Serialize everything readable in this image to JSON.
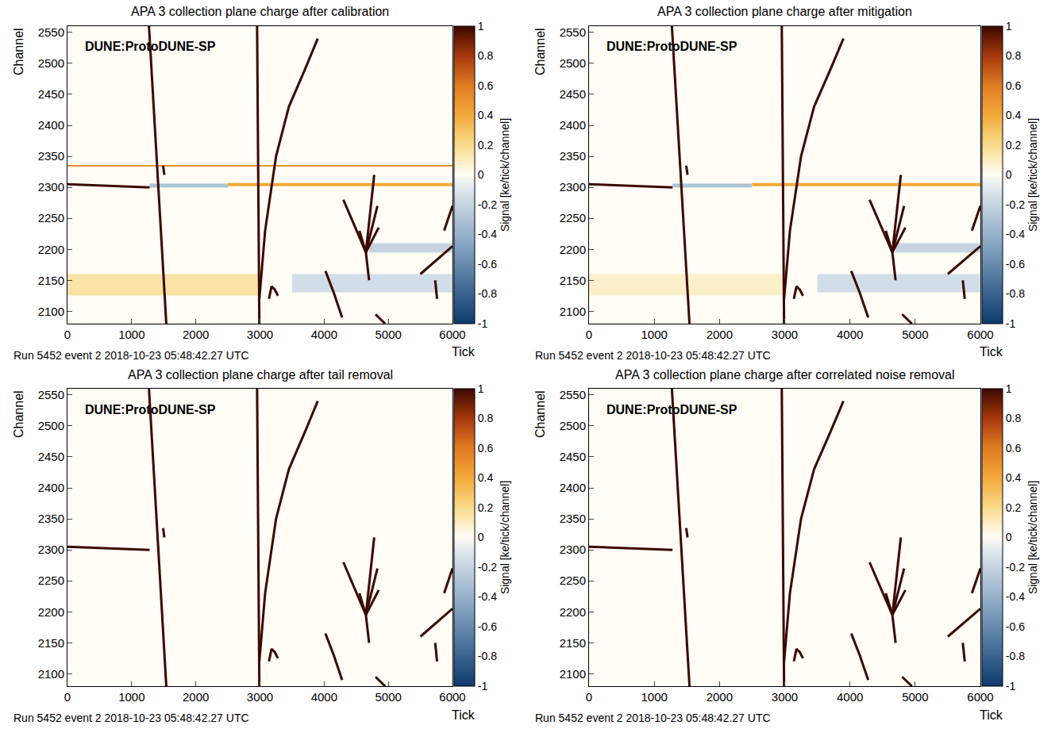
{
  "chart_data": [
    {
      "type": "heatmap",
      "title": "APA 3 collection plane charge after calibration",
      "label": "DUNE:ProtoDUNE-SP",
      "footer": "Run 5452 event 2 2018-10-23 05:48:42.27 UTC",
      "x_label": "Tick",
      "y_label": "Channel",
      "colorbar_label": "Signal [ke/tick/channel]",
      "xlim": [
        0,
        6000
      ],
      "ylim": [
        2080,
        2560
      ],
      "xticks": [
        0,
        1000,
        2000,
        3000,
        4000,
        5000,
        6000
      ],
      "yticks": [
        2100,
        2150,
        2200,
        2250,
        2300,
        2350,
        2400,
        2450,
        2500,
        2550
      ],
      "zlim": [
        -1,
        1
      ],
      "zticks": [
        -1,
        -0.8,
        -0.6,
        -0.4,
        -0.2,
        0,
        0.2,
        0.4,
        0.6,
        0.8,
        1
      ],
      "grid": false,
      "background": 0,
      "bands": [
        {
          "x": [
            0,
            3000
          ],
          "y": [
            2125,
            2160
          ],
          "value": 0.15
        },
        {
          "x": [
            3500,
            6000
          ],
          "y": [
            2130,
            2160
          ],
          "value": -0.15
        },
        {
          "x": [
            4700,
            6000
          ],
          "y": [
            2195,
            2210
          ],
          "value": -0.2
        },
        {
          "x": [
            1280,
            2500
          ],
          "y": [
            2300,
            2306
          ],
          "value": -0.3
        },
        {
          "x": [
            2500,
            6000
          ],
          "y": [
            2302,
            2307
          ],
          "value": 0.4
        },
        {
          "x": [
            0,
            6000
          ],
          "y": [
            2333,
            2336
          ],
          "value": 0.5
        }
      ],
      "tracks": [
        {
          "x": [
            1270,
            1400,
            1540
          ],
          "y": [
            2560,
            2330,
            2080
          ],
          "value": 1
        },
        {
          "x": [
            2955,
            2970,
            2985,
            2990
          ],
          "y": [
            2560,
            2330,
            2120,
            2080
          ],
          "value": 1
        },
        {
          "x": [
            2990,
            3080,
            3250,
            3450,
            3700,
            3900
          ],
          "y": [
            2120,
            2230,
            2350,
            2430,
            2490,
            2540
          ],
          "value": 1
        },
        {
          "x": [
            0,
            1280
          ],
          "y": [
            2305,
            2300
          ],
          "value": 1
        },
        {
          "x": [
            4300,
            4650
          ],
          "y": [
            2280,
            2195
          ],
          "value": 1
        },
        {
          "x": [
            4650,
            4780
          ],
          "y": [
            2195,
            2320
          ],
          "value": 1
        },
        {
          "x": [
            4650,
            4830
          ],
          "y": [
            2195,
            2270
          ],
          "value": 1
        },
        {
          "x": [
            4650,
            4850
          ],
          "y": [
            2195,
            2235
          ],
          "value": 1
        },
        {
          "x": [
            4550,
            4650,
            4700
          ],
          "y": [
            2230,
            2195,
            2150
          ],
          "value": 1
        },
        {
          "x": [
            4020,
            4150,
            4280
          ],
          "y": [
            2165,
            2130,
            2090
          ],
          "value": 1
        },
        {
          "x": [
            5500,
            6000
          ],
          "y": [
            2160,
            2205
          ],
          "value": 1
        },
        {
          "x": [
            5870,
            6000
          ],
          "y": [
            2230,
            2270
          ],
          "value": 1
        },
        {
          "x": [
            3140,
            3180,
            3230,
            3280
          ],
          "y": [
            2120,
            2140,
            2135,
            2125
          ],
          "value": 1
        },
        {
          "x": [
            1490,
            1510
          ],
          "y": [
            2335,
            2320
          ],
          "value": 1
        },
        {
          "x": [
            4800,
            4950
          ],
          "y": [
            2095,
            2080
          ],
          "value": 1
        },
        {
          "x": [
            5730,
            5760
          ],
          "y": [
            2150,
            2120
          ],
          "value": 1
        }
      ]
    },
    {
      "type": "heatmap",
      "title": "APA 3 collection plane charge after mitigation",
      "label": "DUNE:ProtoDUNE-SP",
      "footer": "Run 5452 event 2 2018-10-23 05:48:42.27 UTC",
      "x_label": "Tick",
      "y_label": "Channel",
      "colorbar_label": "Signal [ke/tick/channel]",
      "xlim": [
        0,
        6000
      ],
      "ylim": [
        2080,
        2560
      ],
      "xticks": [
        0,
        1000,
        2000,
        3000,
        4000,
        5000,
        6000
      ],
      "yticks": [
        2100,
        2150,
        2200,
        2250,
        2300,
        2350,
        2400,
        2450,
        2500,
        2550
      ],
      "zlim": [
        -1,
        1
      ],
      "zticks": [
        -1,
        -0.8,
        -0.6,
        -0.4,
        -0.2,
        0,
        0.2,
        0.4,
        0.6,
        0.8,
        1
      ],
      "grid": false,
      "background": 0,
      "bands": [
        {
          "x": [
            0,
            3000
          ],
          "y": [
            2125,
            2160
          ],
          "value": 0.08
        },
        {
          "x": [
            3500,
            6000
          ],
          "y": [
            2130,
            2160
          ],
          "value": -0.15
        },
        {
          "x": [
            4700,
            6000
          ],
          "y": [
            2195,
            2210
          ],
          "value": -0.2
        },
        {
          "x": [
            1280,
            2500
          ],
          "y": [
            2300,
            2306
          ],
          "value": -0.3
        },
        {
          "x": [
            2500,
            6000
          ],
          "y": [
            2302,
            2307
          ],
          "value": 0.4
        }
      ],
      "tracks": [
        {
          "x": [
            1270,
            1400,
            1540
          ],
          "y": [
            2560,
            2330,
            2080
          ],
          "value": 1
        },
        {
          "x": [
            2955,
            2970,
            2985,
            2990
          ],
          "y": [
            2560,
            2330,
            2120,
            2080
          ],
          "value": 1
        },
        {
          "x": [
            2990,
            3080,
            3250,
            3450,
            3700,
            3900
          ],
          "y": [
            2120,
            2230,
            2350,
            2430,
            2490,
            2540
          ],
          "value": 1
        },
        {
          "x": [
            0,
            1280
          ],
          "y": [
            2305,
            2300
          ],
          "value": 1
        },
        {
          "x": [
            4300,
            4650
          ],
          "y": [
            2280,
            2195
          ],
          "value": 1
        },
        {
          "x": [
            4650,
            4780
          ],
          "y": [
            2195,
            2320
          ],
          "value": 1
        },
        {
          "x": [
            4650,
            4830
          ],
          "y": [
            2195,
            2270
          ],
          "value": 1
        },
        {
          "x": [
            4650,
            4850
          ],
          "y": [
            2195,
            2235
          ],
          "value": 1
        },
        {
          "x": [
            4550,
            4650,
            4700
          ],
          "y": [
            2230,
            2195,
            2150
          ],
          "value": 1
        },
        {
          "x": [
            4020,
            4150,
            4280
          ],
          "y": [
            2165,
            2130,
            2090
          ],
          "value": 1
        },
        {
          "x": [
            5500,
            6000
          ],
          "y": [
            2160,
            2205
          ],
          "value": 1
        },
        {
          "x": [
            5870,
            6000
          ],
          "y": [
            2230,
            2270
          ],
          "value": 1
        },
        {
          "x": [
            3140,
            3180,
            3230,
            3280
          ],
          "y": [
            2120,
            2140,
            2135,
            2125
          ],
          "value": 1
        },
        {
          "x": [
            1490,
            1510
          ],
          "y": [
            2335,
            2320
          ],
          "value": 1
        },
        {
          "x": [
            4800,
            4950
          ],
          "y": [
            2095,
            2080
          ],
          "value": 1
        },
        {
          "x": [
            5730,
            5760
          ],
          "y": [
            2150,
            2120
          ],
          "value": 1
        }
      ]
    },
    {
      "type": "heatmap",
      "title": "APA 3 collection plane charge after tail removal",
      "label": "DUNE:ProtoDUNE-SP",
      "footer": "Run 5452 event 2 2018-10-23 05:48:42.27 UTC",
      "x_label": "Tick",
      "y_label": "Channel",
      "colorbar_label": "Signal [ke/tick/channel]",
      "xlim": [
        0,
        6000
      ],
      "ylim": [
        2080,
        2560
      ],
      "xticks": [
        0,
        1000,
        2000,
        3000,
        4000,
        5000,
        6000
      ],
      "yticks": [
        2100,
        2150,
        2200,
        2250,
        2300,
        2350,
        2400,
        2450,
        2500,
        2550
      ],
      "zlim": [
        -1,
        1
      ],
      "zticks": [
        -1,
        -0.8,
        -0.6,
        -0.4,
        -0.2,
        0,
        0.2,
        0.4,
        0.6,
        0.8,
        1
      ],
      "grid": false,
      "background": 0,
      "bands": [],
      "tracks": [
        {
          "x": [
            1270,
            1400,
            1540
          ],
          "y": [
            2560,
            2330,
            2080
          ],
          "value": 1
        },
        {
          "x": [
            2955,
            2970,
            2985,
            2990
          ],
          "y": [
            2560,
            2330,
            2120,
            2080
          ],
          "value": 1
        },
        {
          "x": [
            2990,
            3080,
            3250,
            3450,
            3700,
            3900
          ],
          "y": [
            2120,
            2230,
            2350,
            2430,
            2490,
            2540
          ],
          "value": 1
        },
        {
          "x": [
            0,
            1280
          ],
          "y": [
            2305,
            2300
          ],
          "value": 1
        },
        {
          "x": [
            4300,
            4650
          ],
          "y": [
            2280,
            2195
          ],
          "value": 1
        },
        {
          "x": [
            4650,
            4780
          ],
          "y": [
            2195,
            2320
          ],
          "value": 1
        },
        {
          "x": [
            4650,
            4830
          ],
          "y": [
            2195,
            2270
          ],
          "value": 1
        },
        {
          "x": [
            4650,
            4850
          ],
          "y": [
            2195,
            2235
          ],
          "value": 1
        },
        {
          "x": [
            4550,
            4650,
            4700
          ],
          "y": [
            2230,
            2195,
            2150
          ],
          "value": 1
        },
        {
          "x": [
            4020,
            4150,
            4280
          ],
          "y": [
            2165,
            2130,
            2090
          ],
          "value": 1
        },
        {
          "x": [
            5500,
            6000
          ],
          "y": [
            2160,
            2205
          ],
          "value": 1
        },
        {
          "x": [
            5870,
            6000
          ],
          "y": [
            2230,
            2270
          ],
          "value": 1
        },
        {
          "x": [
            3140,
            3180,
            3230,
            3280
          ],
          "y": [
            2120,
            2140,
            2135,
            2125
          ],
          "value": 1
        },
        {
          "x": [
            1490,
            1510
          ],
          "y": [
            2335,
            2320
          ],
          "value": 1
        },
        {
          "x": [
            4800,
            4950
          ],
          "y": [
            2095,
            2080
          ],
          "value": 1
        },
        {
          "x": [
            5730,
            5760
          ],
          "y": [
            2150,
            2120
          ],
          "value": 1
        }
      ]
    },
    {
      "type": "heatmap",
      "title": "APA 3 collection plane charge after correlated noise removal",
      "label": "DUNE:ProtoDUNE-SP",
      "footer": "Run 5452 event 2 2018-10-23 05:48:42.27 UTC",
      "x_label": "Tick",
      "y_label": "Channel",
      "colorbar_label": "Signal [ke/tick/channel]",
      "xlim": [
        0,
        6000
      ],
      "ylim": [
        2080,
        2560
      ],
      "xticks": [
        0,
        1000,
        2000,
        3000,
        4000,
        5000,
        6000
      ],
      "yticks": [
        2100,
        2150,
        2200,
        2250,
        2300,
        2350,
        2400,
        2450,
        2500,
        2550
      ],
      "zlim": [
        -1,
        1
      ],
      "zticks": [
        -1,
        -0.8,
        -0.6,
        -0.4,
        -0.2,
        0,
        0.2,
        0.4,
        0.6,
        0.8,
        1
      ],
      "grid": false,
      "background": 0,
      "bands": [],
      "tracks": [
        {
          "x": [
            1270,
            1400,
            1540
          ],
          "y": [
            2560,
            2330,
            2080
          ],
          "value": 1
        },
        {
          "x": [
            2955,
            2970,
            2985,
            2990
          ],
          "y": [
            2560,
            2330,
            2120,
            2080
          ],
          "value": 1
        },
        {
          "x": [
            2990,
            3080,
            3250,
            3450,
            3700,
            3900
          ],
          "y": [
            2120,
            2230,
            2350,
            2430,
            2490,
            2540
          ],
          "value": 1
        },
        {
          "x": [
            0,
            1280
          ],
          "y": [
            2305,
            2300
          ],
          "value": 1
        },
        {
          "x": [
            4300,
            4650
          ],
          "y": [
            2280,
            2195
          ],
          "value": 1
        },
        {
          "x": [
            4650,
            4780
          ],
          "y": [
            2195,
            2320
          ],
          "value": 1
        },
        {
          "x": [
            4650,
            4830
          ],
          "y": [
            2195,
            2270
          ],
          "value": 1
        },
        {
          "x": [
            4650,
            4850
          ],
          "y": [
            2195,
            2235
          ],
          "value": 1
        },
        {
          "x": [
            4550,
            4650,
            4700
          ],
          "y": [
            2230,
            2195,
            2150
          ],
          "value": 1
        },
        {
          "x": [
            4020,
            4150,
            4280
          ],
          "y": [
            2165,
            2130,
            2090
          ],
          "value": 1
        },
        {
          "x": [
            5500,
            6000
          ],
          "y": [
            2160,
            2205
          ],
          "value": 1
        },
        {
          "x": [
            5870,
            6000
          ],
          "y": [
            2230,
            2270
          ],
          "value": 1
        },
        {
          "x": [
            3140,
            3180,
            3230,
            3280
          ],
          "y": [
            2120,
            2140,
            2135,
            2125
          ],
          "value": 1
        },
        {
          "x": [
            1490,
            1510
          ],
          "y": [
            2335,
            2320
          ],
          "value": 1
        },
        {
          "x": [
            4800,
            4950
          ],
          "y": [
            2095,
            2080
          ],
          "value": 1
        },
        {
          "x": [
            5730,
            5760
          ],
          "y": [
            2150,
            2120
          ],
          "value": 1
        }
      ]
    }
  ]
}
